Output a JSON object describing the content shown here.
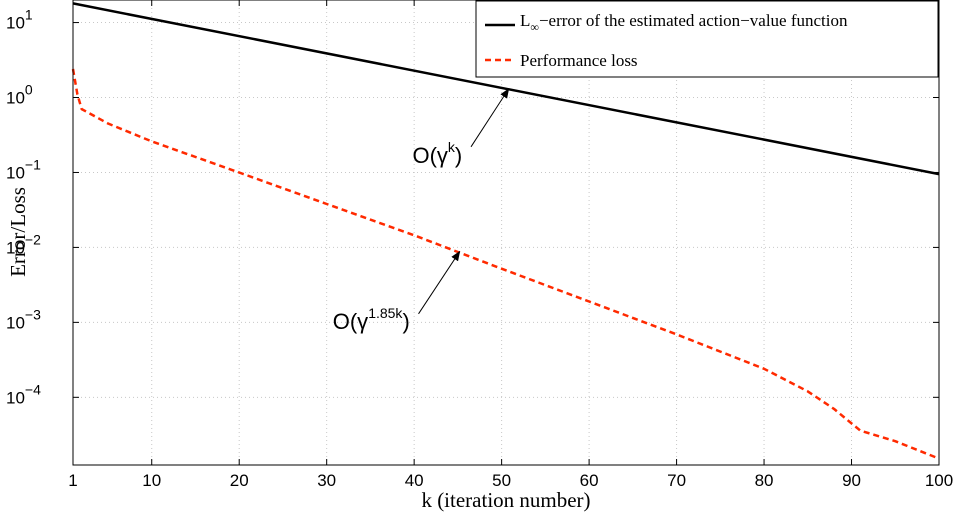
{
  "chart_data": {
    "type": "line",
    "xlabel": "k (iteration number)",
    "ylabel": "Error/Loss",
    "xlim": [
      1,
      100
    ],
    "ylim": [
      1.25e-05,
      20
    ],
    "yscale": "log",
    "grid": true,
    "x_ticks": [
      1,
      10,
      20,
      30,
      40,
      50,
      60,
      70,
      80,
      90,
      100
    ],
    "y_ticks": [
      {
        "value": 10,
        "base": "10",
        "exp": "1"
      },
      {
        "value": 1,
        "base": "10",
        "exp": "0"
      },
      {
        "value": 0.1,
        "base": "10",
        "exp": "−1"
      },
      {
        "value": 0.01,
        "base": "10",
        "exp": "−2"
      },
      {
        "value": 0.001,
        "base": "10",
        "exp": "−3"
      },
      {
        "value": 0.0001,
        "base": "10",
        "exp": "−4"
      }
    ],
    "legend_placement": "top-right",
    "series": [
      {
        "name_main": "L",
        "name_sub": "∞",
        "name_rest": "−error of the estimated action−value function",
        "color": "#000000",
        "dash": "solid",
        "x": [
          1,
          100
        ],
        "y": [
          18,
          0.095
        ]
      },
      {
        "name": "Performance loss",
        "color": "#ff2a00",
        "dash": "dashed",
        "x": [
          1,
          1.5,
          2,
          5,
          10,
          20,
          30,
          40,
          50,
          60,
          70,
          80,
          85,
          88,
          91,
          95,
          100
        ],
        "y": [
          2.4,
          1.1,
          0.7,
          0.45,
          0.26,
          0.1,
          0.038,
          0.0145,
          0.0052,
          0.0019,
          0.00069,
          0.00024,
          0.00012,
          7e-05,
          3.6e-05,
          2.6e-05,
          1.52e-05
        ]
      }
    ],
    "annotations": [
      {
        "base": "O(γ",
        "sup": "k",
        "close": ")",
        "text_k": 45.5,
        "text_v": 0.17,
        "arrow_from_k": 46.5,
        "arrow_from_v": 0.22,
        "arrow_to_k": 50.8,
        "arrow_to_v": 1.3
      },
      {
        "base": "O(γ",
        "sup": "1.85k",
        "close": ")",
        "text_k": 39.5,
        "text_v": 0.00105,
        "arrow_from_k": 40.5,
        "arrow_from_v": 0.0013,
        "arrow_to_k": 45.2,
        "arrow_to_v": 0.0088
      }
    ]
  }
}
